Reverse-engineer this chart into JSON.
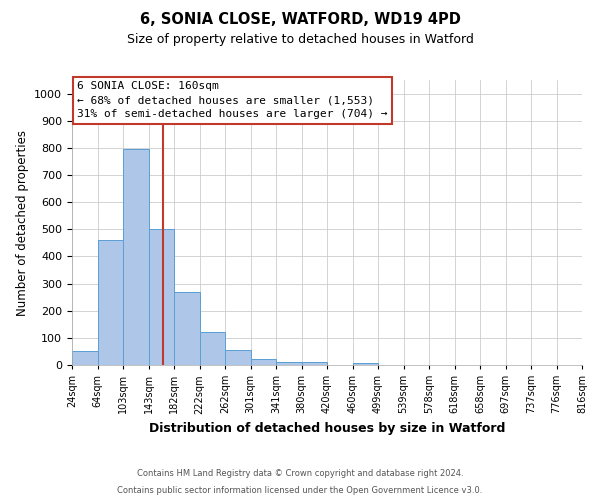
{
  "title1": "6, SONIA CLOSE, WATFORD, WD19 4PD",
  "title2": "Size of property relative to detached houses in Watford",
  "xlabel": "Distribution of detached houses by size in Watford",
  "ylabel": "Number of detached properties",
  "bins": [
    "24sqm",
    "64sqm",
    "103sqm",
    "143sqm",
    "182sqm",
    "222sqm",
    "262sqm",
    "301sqm",
    "341sqm",
    "380sqm",
    "420sqm",
    "460sqm",
    "499sqm",
    "539sqm",
    "578sqm",
    "618sqm",
    "658sqm",
    "697sqm",
    "737sqm",
    "776sqm",
    "816sqm"
  ],
  "bar_values": [
    50,
    460,
    795,
    500,
    270,
    120,
    55,
    22,
    10,
    12,
    0,
    8,
    0,
    0,
    0,
    0,
    0,
    0,
    0,
    0
  ],
  "bar_color": "#aec6e8",
  "bar_edge_color": "#5a9fd4",
  "ylim": [
    0,
    1050
  ],
  "yticks": [
    0,
    100,
    200,
    300,
    400,
    500,
    600,
    700,
    800,
    900,
    1000
  ],
  "vline_pos": 3.55,
  "vline_color": "#c0392b",
  "annotation_text": "6 SONIA CLOSE: 160sqm\n← 68% of detached houses are smaller (1,553)\n31% of semi-detached houses are larger (704) →",
  "annotation_box_color": "#ffffff",
  "annotation_border_color": "#c0392b",
  "footnote1": "Contains HM Land Registry data © Crown copyright and database right 2024.",
  "footnote2": "Contains public sector information licensed under the Open Government Licence v3.0.",
  "background_color": "#ffffff",
  "grid_color": "#cccccc"
}
